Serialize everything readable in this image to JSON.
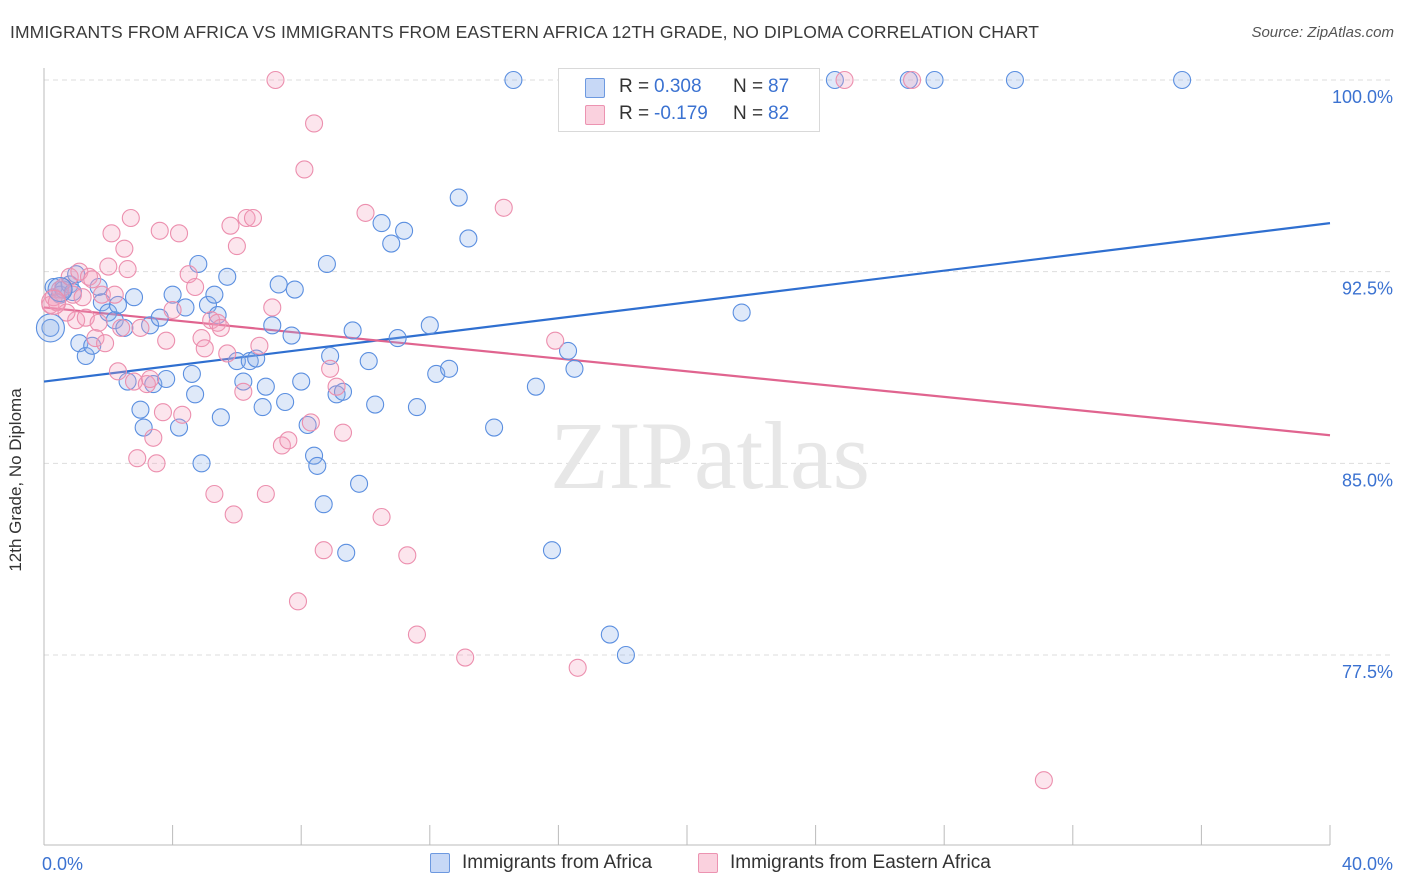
{
  "title": "IMMIGRANTS FROM AFRICA VS IMMIGRANTS FROM EASTERN AFRICA 12TH GRADE, NO DIPLOMA CORRELATION CHART",
  "source": "Source: ZipAtlas.com",
  "watermark": "ZIPatlas",
  "colors": {
    "blue": "#5b8fe0",
    "blue_fill": "rgba(140,175,235,0.28)",
    "blue_line": "#2f6fd0",
    "pink": "#ec8fae",
    "pink_fill": "rgba(245,160,190,0.28)",
    "pink_line": "#e0648f",
    "tick_label": "#3b72d1",
    "grid": "#dddddd"
  },
  "legend": {
    "rows": [
      {
        "r_label": "R =",
        "r_value": "0.308",
        "n_label": "N =",
        "n_value": "87",
        "color": "blue"
      },
      {
        "r_label": "R =",
        "r_value": "-0.179",
        "n_label": "N =",
        "n_value": "82",
        "color": "pink"
      }
    ]
  },
  "chart_data": {
    "type": "scatter",
    "title": "IMMIGRANTS FROM AFRICA VS IMMIGRANTS FROM EASTERN AFRICA 12TH GRADE, NO DIPLOMA CORRELATION CHART",
    "xlabel": "",
    "ylabel": "12th Grade, No Diploma",
    "xlim": [
      0,
      40
    ],
    "ylim": [
      71.0,
      100.5
    ],
    "x_tick_labels": [
      "0.0%",
      "40.0%"
    ],
    "y_ticks": [
      77.5,
      85.0,
      92.5,
      100.0
    ],
    "y_tick_labels": [
      "77.5%",
      "85.0%",
      "92.5%",
      "100.0%"
    ],
    "grid": true,
    "legend_position": "top-center",
    "series": [
      {
        "name": "Immigrants from Africa",
        "color": "blue",
        "trend": {
          "x": [
            0,
            40
          ],
          "y": [
            88.2,
            94.4
          ]
        },
        "points": [
          [
            0.3,
            91.9
          ],
          [
            0.5,
            91.6
          ],
          [
            0.6,
            91.8
          ],
          [
            0.8,
            92.0
          ],
          [
            0.9,
            91.7
          ],
          [
            1.0,
            92.4
          ],
          [
            1.1,
            89.7
          ],
          [
            1.3,
            89.2
          ],
          [
            1.5,
            89.6
          ],
          [
            1.7,
            91.9
          ],
          [
            1.8,
            91.3
          ],
          [
            2.0,
            90.9
          ],
          [
            2.2,
            90.6
          ],
          [
            2.3,
            91.2
          ],
          [
            2.5,
            90.3
          ],
          [
            2.6,
            88.2
          ],
          [
            2.8,
            91.5
          ],
          [
            3.0,
            87.1
          ],
          [
            3.1,
            86.4
          ],
          [
            3.3,
            90.4
          ],
          [
            3.4,
            88.1
          ],
          [
            3.6,
            90.7
          ],
          [
            3.8,
            88.3
          ],
          [
            4.0,
            91.6
          ],
          [
            4.2,
            86.4
          ],
          [
            4.4,
            91.1
          ],
          [
            4.6,
            88.5
          ],
          [
            4.7,
            87.7
          ],
          [
            4.8,
            92.8
          ],
          [
            4.9,
            85.0
          ],
          [
            5.1,
            91.2
          ],
          [
            5.3,
            91.6
          ],
          [
            5.4,
            90.8
          ],
          [
            5.5,
            86.8
          ],
          [
            5.7,
            92.3
          ],
          [
            6.0,
            89.0
          ],
          [
            6.2,
            88.2
          ],
          [
            6.4,
            89.0
          ],
          [
            6.6,
            89.1
          ],
          [
            6.8,
            87.2
          ],
          [
            6.9,
            88.0
          ],
          [
            7.1,
            90.4
          ],
          [
            7.3,
            92.0
          ],
          [
            7.5,
            87.4
          ],
          [
            7.7,
            90.0
          ],
          [
            7.8,
            91.8
          ],
          [
            8.0,
            88.2
          ],
          [
            8.2,
            86.5
          ],
          [
            8.4,
            85.3
          ],
          [
            8.5,
            84.9
          ],
          [
            8.7,
            83.4
          ],
          [
            8.8,
            92.8
          ],
          [
            8.9,
            89.2
          ],
          [
            9.1,
            87.7
          ],
          [
            9.3,
            87.8
          ],
          [
            9.4,
            81.5
          ],
          [
            9.6,
            90.2
          ],
          [
            9.8,
            84.2
          ],
          [
            10.1,
            89.0
          ],
          [
            10.3,
            87.3
          ],
          [
            10.5,
            94.4
          ],
          [
            10.8,
            93.6
          ],
          [
            11.0,
            89.9
          ],
          [
            11.2,
            94.1
          ],
          [
            11.6,
            87.2
          ],
          [
            12.0,
            90.4
          ],
          [
            12.2,
            88.5
          ],
          [
            12.6,
            88.7
          ],
          [
            12.9,
            95.4
          ],
          [
            13.2,
            93.8
          ],
          [
            14.0,
            86.4
          ],
          [
            14.6,
            100.0
          ],
          [
            15.3,
            88.0
          ],
          [
            15.8,
            81.6
          ],
          [
            16.3,
            89.4
          ],
          [
            16.5,
            88.7
          ],
          [
            16.9,
            100.0
          ],
          [
            17.6,
            78.3
          ],
          [
            18.1,
            77.5
          ],
          [
            19.2,
            100.0
          ],
          [
            21.7,
            90.9
          ],
          [
            24.6,
            100.0
          ],
          [
            26.9,
            100.0
          ],
          [
            27.7,
            100.0
          ],
          [
            30.2,
            100.0
          ],
          [
            35.4,
            100.0
          ],
          [
            0.2,
            90.3
          ]
        ]
      },
      {
        "name": "Immigrants from Eastern Africa",
        "color": "pink",
        "trend": {
          "x": [
            0,
            40
          ],
          "y": [
            91.1,
            86.1
          ]
        },
        "points": [
          [
            0.2,
            91.2
          ],
          [
            0.3,
            91.5
          ],
          [
            0.5,
            91.8
          ],
          [
            0.6,
            91.9
          ],
          [
            0.8,
            92.3
          ],
          [
            0.9,
            91.6
          ],
          [
            1.0,
            90.6
          ],
          [
            1.1,
            92.5
          ],
          [
            1.2,
            91.5
          ],
          [
            1.3,
            90.7
          ],
          [
            1.4,
            92.3
          ],
          [
            1.5,
            92.2
          ],
          [
            1.6,
            89.9
          ],
          [
            1.7,
            90.5
          ],
          [
            1.8,
            91.6
          ],
          [
            2.0,
            92.7
          ],
          [
            2.1,
            94.0
          ],
          [
            2.2,
            91.6
          ],
          [
            2.3,
            88.6
          ],
          [
            2.4,
            90.3
          ],
          [
            2.5,
            93.4
          ],
          [
            2.6,
            92.6
          ],
          [
            2.7,
            94.6
          ],
          [
            2.8,
            88.2
          ],
          [
            2.9,
            85.2
          ],
          [
            3.0,
            90.3
          ],
          [
            3.2,
            88.1
          ],
          [
            3.3,
            88.3
          ],
          [
            3.5,
            85.0
          ],
          [
            3.6,
            94.1
          ],
          [
            3.7,
            87.0
          ],
          [
            3.8,
            89.8
          ],
          [
            4.0,
            91.0
          ],
          [
            4.2,
            94.0
          ],
          [
            4.3,
            86.9
          ],
          [
            4.5,
            92.4
          ],
          [
            4.7,
            91.9
          ],
          [
            4.9,
            89.9
          ],
          [
            5.0,
            89.5
          ],
          [
            5.2,
            90.6
          ],
          [
            5.3,
            83.8
          ],
          [
            5.4,
            90.5
          ],
          [
            5.5,
            90.3
          ],
          [
            5.7,
            89.3
          ],
          [
            5.8,
            94.3
          ],
          [
            5.9,
            83.0
          ],
          [
            6.0,
            93.5
          ],
          [
            6.2,
            87.8
          ],
          [
            6.3,
            94.6
          ],
          [
            6.5,
            94.6
          ],
          [
            6.7,
            89.6
          ],
          [
            6.9,
            83.8
          ],
          [
            7.1,
            91.1
          ],
          [
            7.2,
            100.0
          ],
          [
            7.4,
            85.7
          ],
          [
            7.6,
            85.9
          ],
          [
            7.9,
            79.6
          ],
          [
            8.1,
            96.5
          ],
          [
            8.3,
            86.6
          ],
          [
            8.4,
            98.3
          ],
          [
            8.7,
            81.6
          ],
          [
            8.9,
            88.7
          ],
          [
            9.1,
            88.0
          ],
          [
            9.3,
            86.2
          ],
          [
            10.0,
            94.8
          ],
          [
            10.5,
            82.9
          ],
          [
            11.3,
            81.4
          ],
          [
            11.6,
            78.3
          ],
          [
            13.1,
            77.4
          ],
          [
            14.3,
            95.0
          ],
          [
            15.9,
            89.8
          ],
          [
            16.6,
            77.0
          ],
          [
            17.8,
            100.0
          ],
          [
            19.6,
            100.0
          ],
          [
            22.9,
            100.0
          ],
          [
            24.9,
            100.0
          ],
          [
            27.0,
            100.0
          ],
          [
            31.1,
            72.6
          ],
          [
            0.4,
            91.3
          ],
          [
            0.7,
            90.9
          ],
          [
            1.9,
            89.7
          ],
          [
            3.4,
            86.0
          ]
        ]
      }
    ]
  },
  "bottom_legend": [
    {
      "label": "Immigrants from Africa",
      "color": "blue"
    },
    {
      "label": "Immigrants from Eastern Africa",
      "color": "pink"
    }
  ]
}
